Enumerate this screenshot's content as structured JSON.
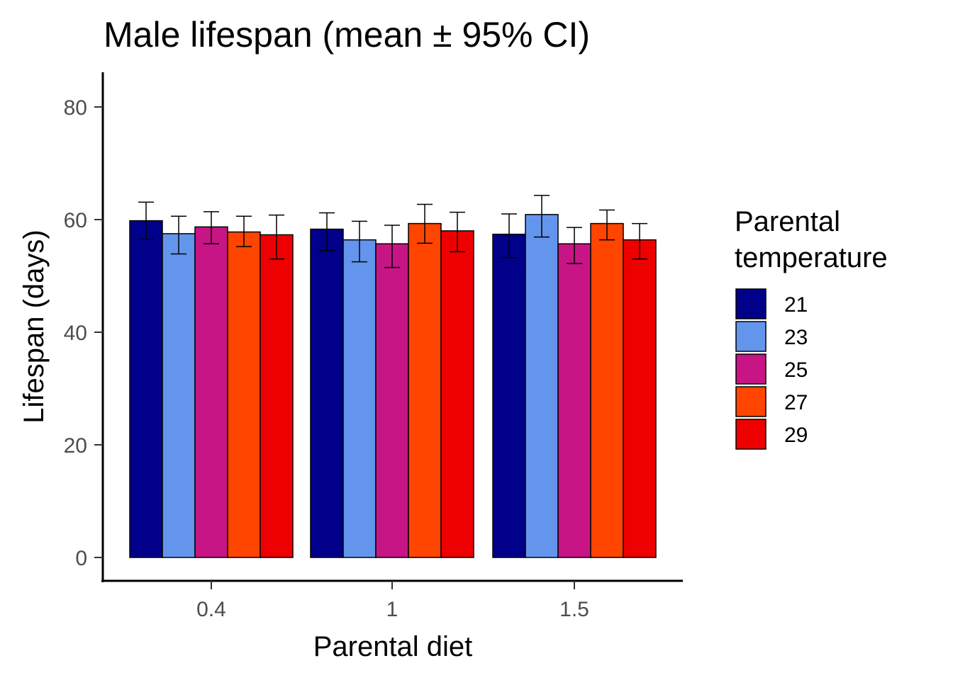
{
  "chart_data": {
    "type": "bar",
    "title": "Male lifespan (mean ± 95% CI)",
    "xlabel": "Parental diet",
    "ylabel": "Lifespan (days)",
    "categories": [
      "0.4",
      "1",
      "1.5"
    ],
    "ylim": [
      -4,
      86
    ],
    "yticks": [
      "0",
      "20",
      "40",
      "60",
      "80"
    ],
    "grid": false,
    "legend": {
      "title_lines": [
        "Parental",
        "temperature"
      ],
      "position": "right"
    },
    "series": [
      {
        "name": "21",
        "color": "#00008B",
        "values": [
          59.8,
          58.3,
          57.4
        ],
        "ci_low": [
          56.5,
          54.5,
          53.2
        ],
        "ci_high": [
          63.1,
          61.2,
          61.0
        ]
      },
      {
        "name": "23",
        "color": "#6495ED",
        "values": [
          57.5,
          56.4,
          60.9
        ],
        "ci_low": [
          53.9,
          52.5,
          56.9
        ],
        "ci_high": [
          60.6,
          59.7,
          64.3
        ]
      },
      {
        "name": "25",
        "color": "#C71585",
        "values": [
          58.7,
          55.7,
          55.7
        ],
        "ci_low": [
          55.7,
          51.5,
          52.2
        ],
        "ci_high": [
          61.4,
          59.0,
          58.6
        ]
      },
      {
        "name": "27",
        "color": "#FF4500",
        "values": [
          57.8,
          59.3,
          59.3
        ],
        "ci_low": [
          55.2,
          55.8,
          56.4
        ],
        "ci_high": [
          60.6,
          62.7,
          61.7
        ]
      },
      {
        "name": "29",
        "color": "#EE0000",
        "values": [
          57.3,
          58.0,
          56.4
        ],
        "ci_low": [
          53.0,
          54.3,
          53.0
        ],
        "ci_high": [
          60.8,
          61.3,
          59.3
        ]
      }
    ]
  }
}
